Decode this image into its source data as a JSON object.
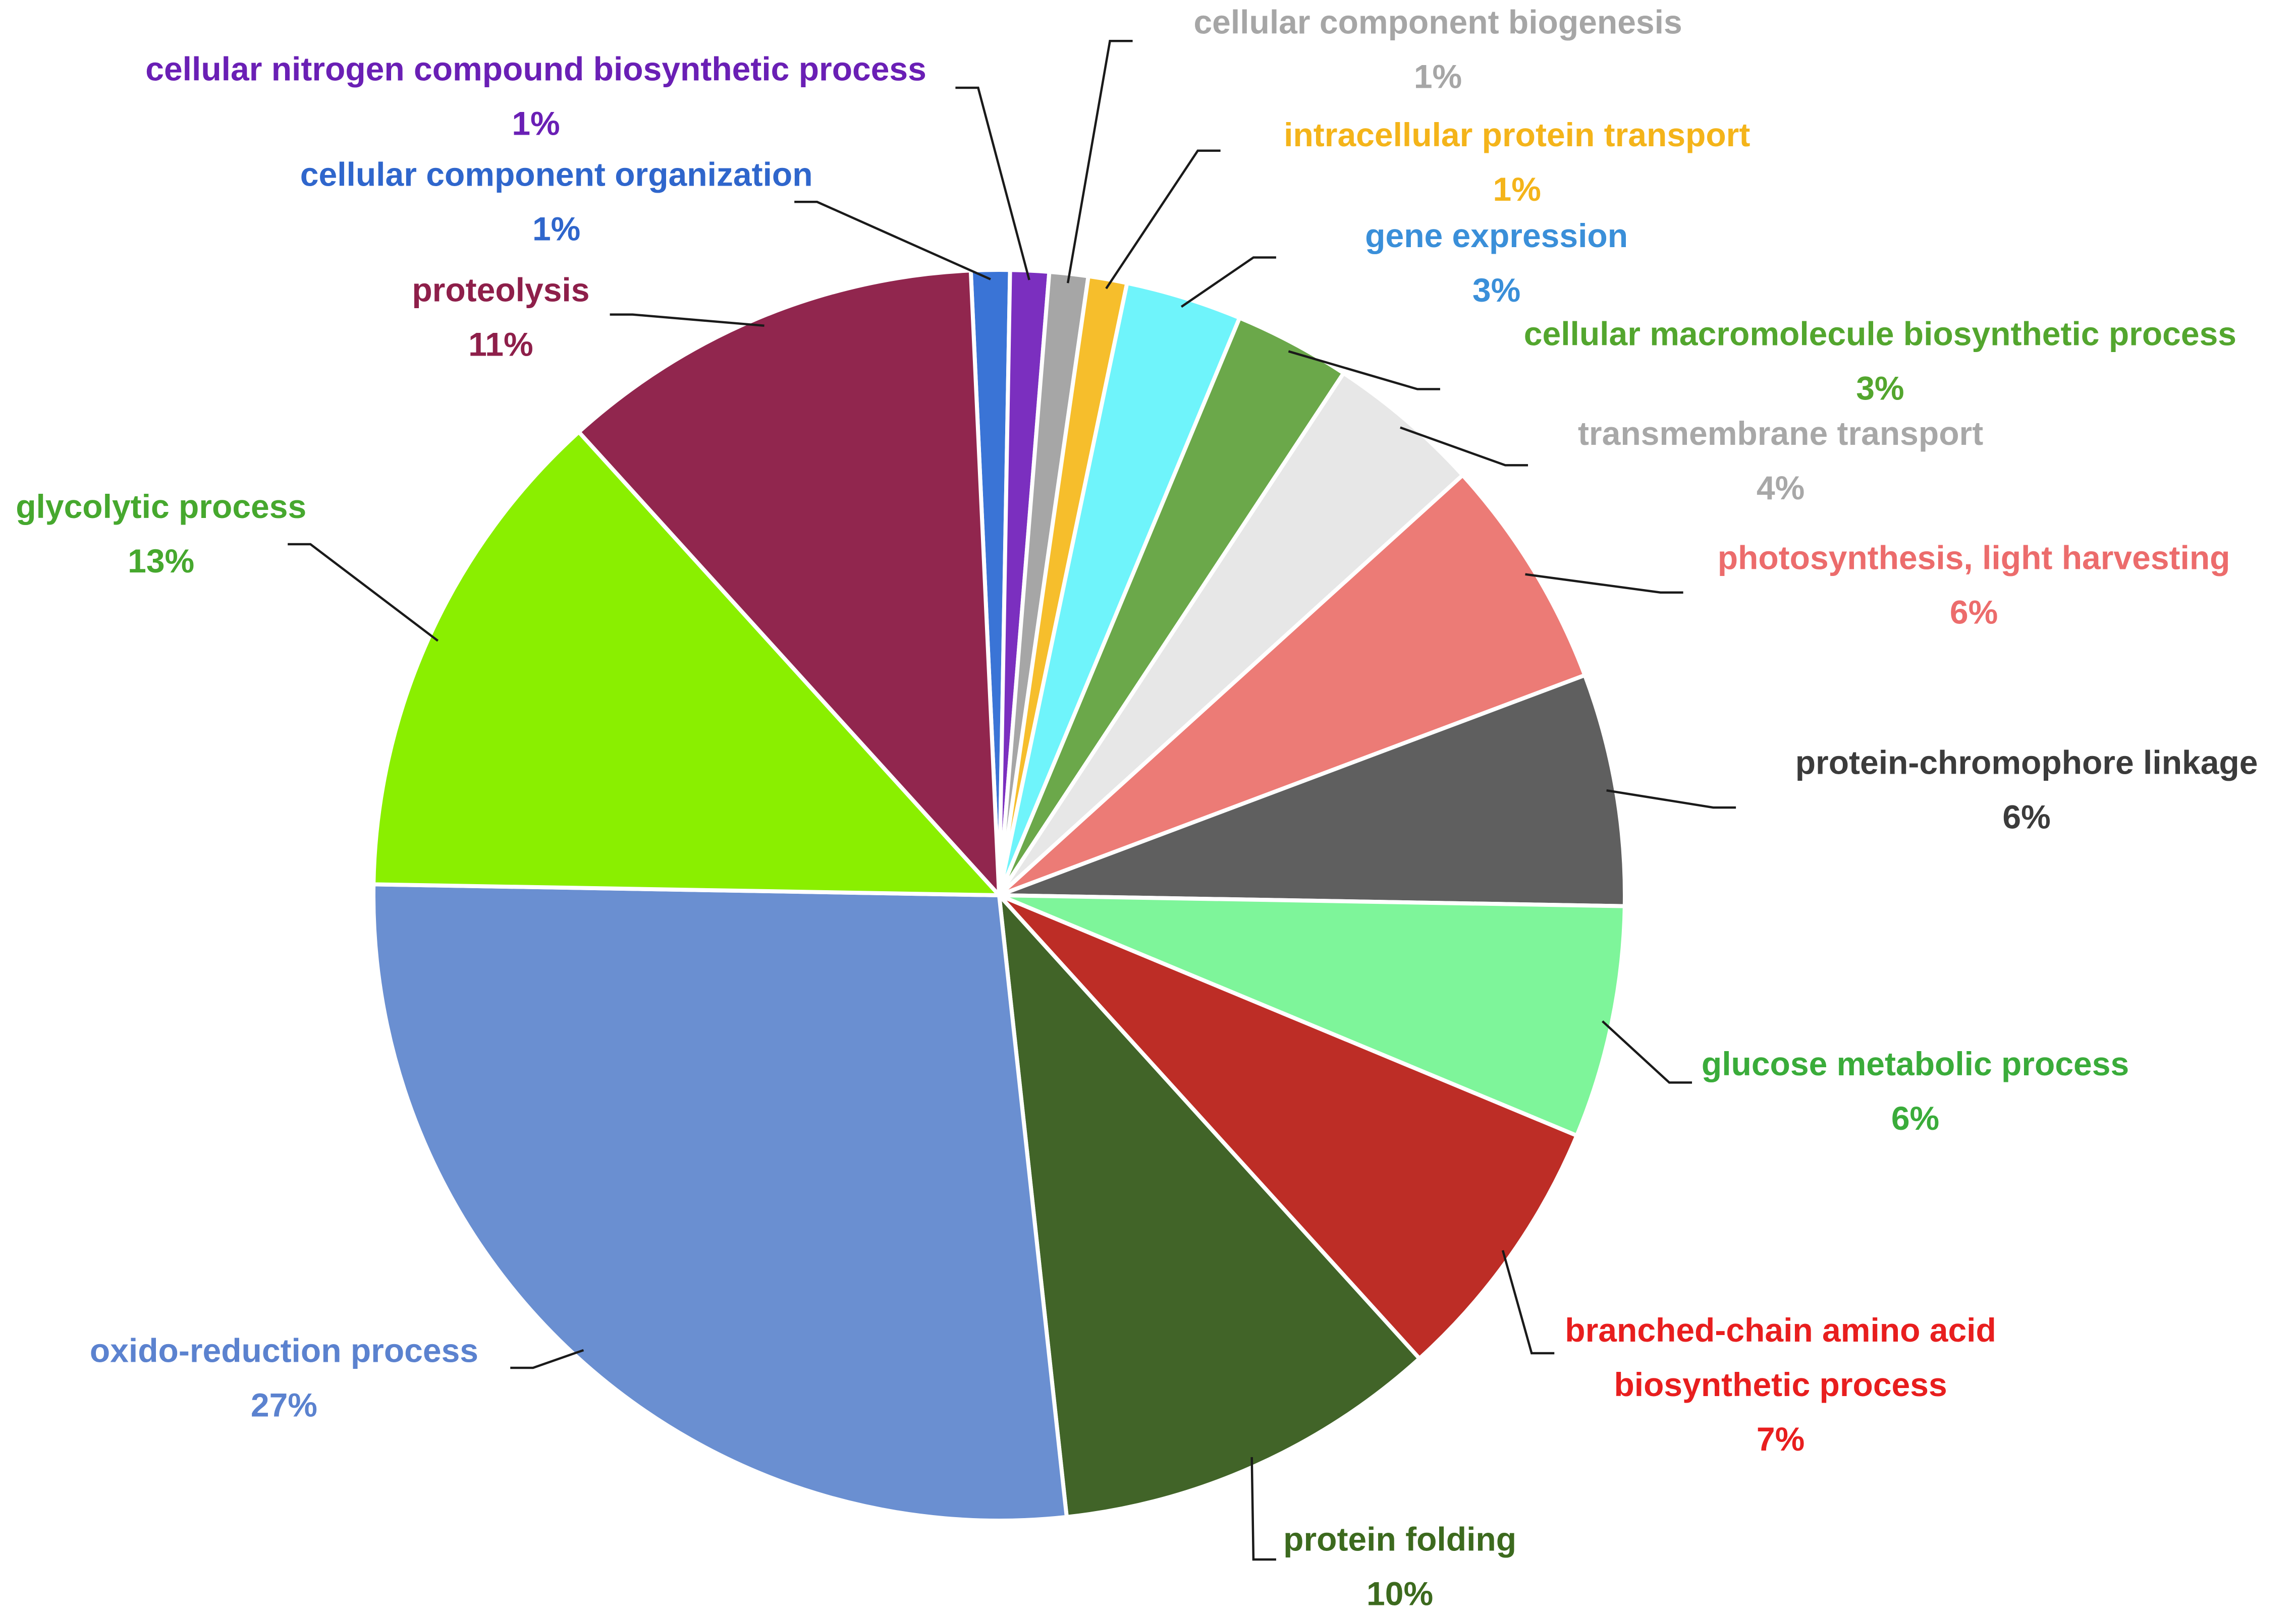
{
  "chart_data": {
    "type": "pie",
    "slices": [
      {
        "label": "cellular component organization",
        "value": 1,
        "value_label": "1%",
        "color": "#3a74d6",
        "label_color": "#2f66cc"
      },
      {
        "label": "cellular nitrogen compound biosynthetic process",
        "value": 1,
        "value_label": "1%",
        "color": "#7b2fbf",
        "label_color": "#6a1fb5"
      },
      {
        "label": "cellular component biogenesis",
        "value": 1,
        "value_label": "1%",
        "color": "#a6a6a6",
        "label_color": "#a6a6a6"
      },
      {
        "label": "intracellular protein transport",
        "value": 1,
        "value_label": "1%",
        "color": "#f6be2c",
        "label_color": "#f4b41a"
      },
      {
        "label": "gene expression",
        "value": 3,
        "value_label": "3%",
        "color": "#6ff4fb",
        "label_color": "#3a8fd9"
      },
      {
        "label": "cellular macromolecule biosynthetic process",
        "value": 3,
        "value_label": "3%",
        "color": "#6ba84a",
        "label_color": "#53a62e"
      },
      {
        "label": "transmembrane transport",
        "value": 4,
        "value_label": "4%",
        "color": "#e7e7e7",
        "label_color": "#a8a8a8"
      },
      {
        "label": "photosynthesis, light harvesting",
        "value": 6,
        "value_label": "6%",
        "color": "#ec7b76",
        "label_color": "#ec6c6c"
      },
      {
        "label": "protein-chromophore linkage",
        "value": 6,
        "value_label": "6%",
        "color": "#5f5f5f",
        "label_color": "#3b3b3b"
      },
      {
        "label": "glucose metabolic process",
        "value": 6,
        "value_label": "6%",
        "color": "#7ef59a",
        "label_color": "#3aac3a"
      },
      {
        "label": "branched-chain amino acid biosynthetic process",
        "label_lines": [
          "branched-chain amino acid",
          "biosynthetic process"
        ],
        "value": 7,
        "value_label": "7%",
        "color": "#bd2d26",
        "label_color": "#e81e1e"
      },
      {
        "label": "protein folding",
        "value": 10,
        "value_label": "10%",
        "color": "#416428",
        "label_color": "#3c6a1e"
      },
      {
        "label": "oxido-reduction process",
        "value": 27,
        "value_label": "27%",
        "color": "#6a8fd1",
        "label_color": "#5b82cf"
      },
      {
        "label": "glycolytic process",
        "value": 13,
        "value_label": "13%",
        "color": "#8aef00",
        "label_color": "#46a82e"
      },
      {
        "label": "proteolysis",
        "value": 11,
        "value_label": "11%",
        "color": "#91264e",
        "label_color": "#8e1f4a"
      }
    ]
  }
}
